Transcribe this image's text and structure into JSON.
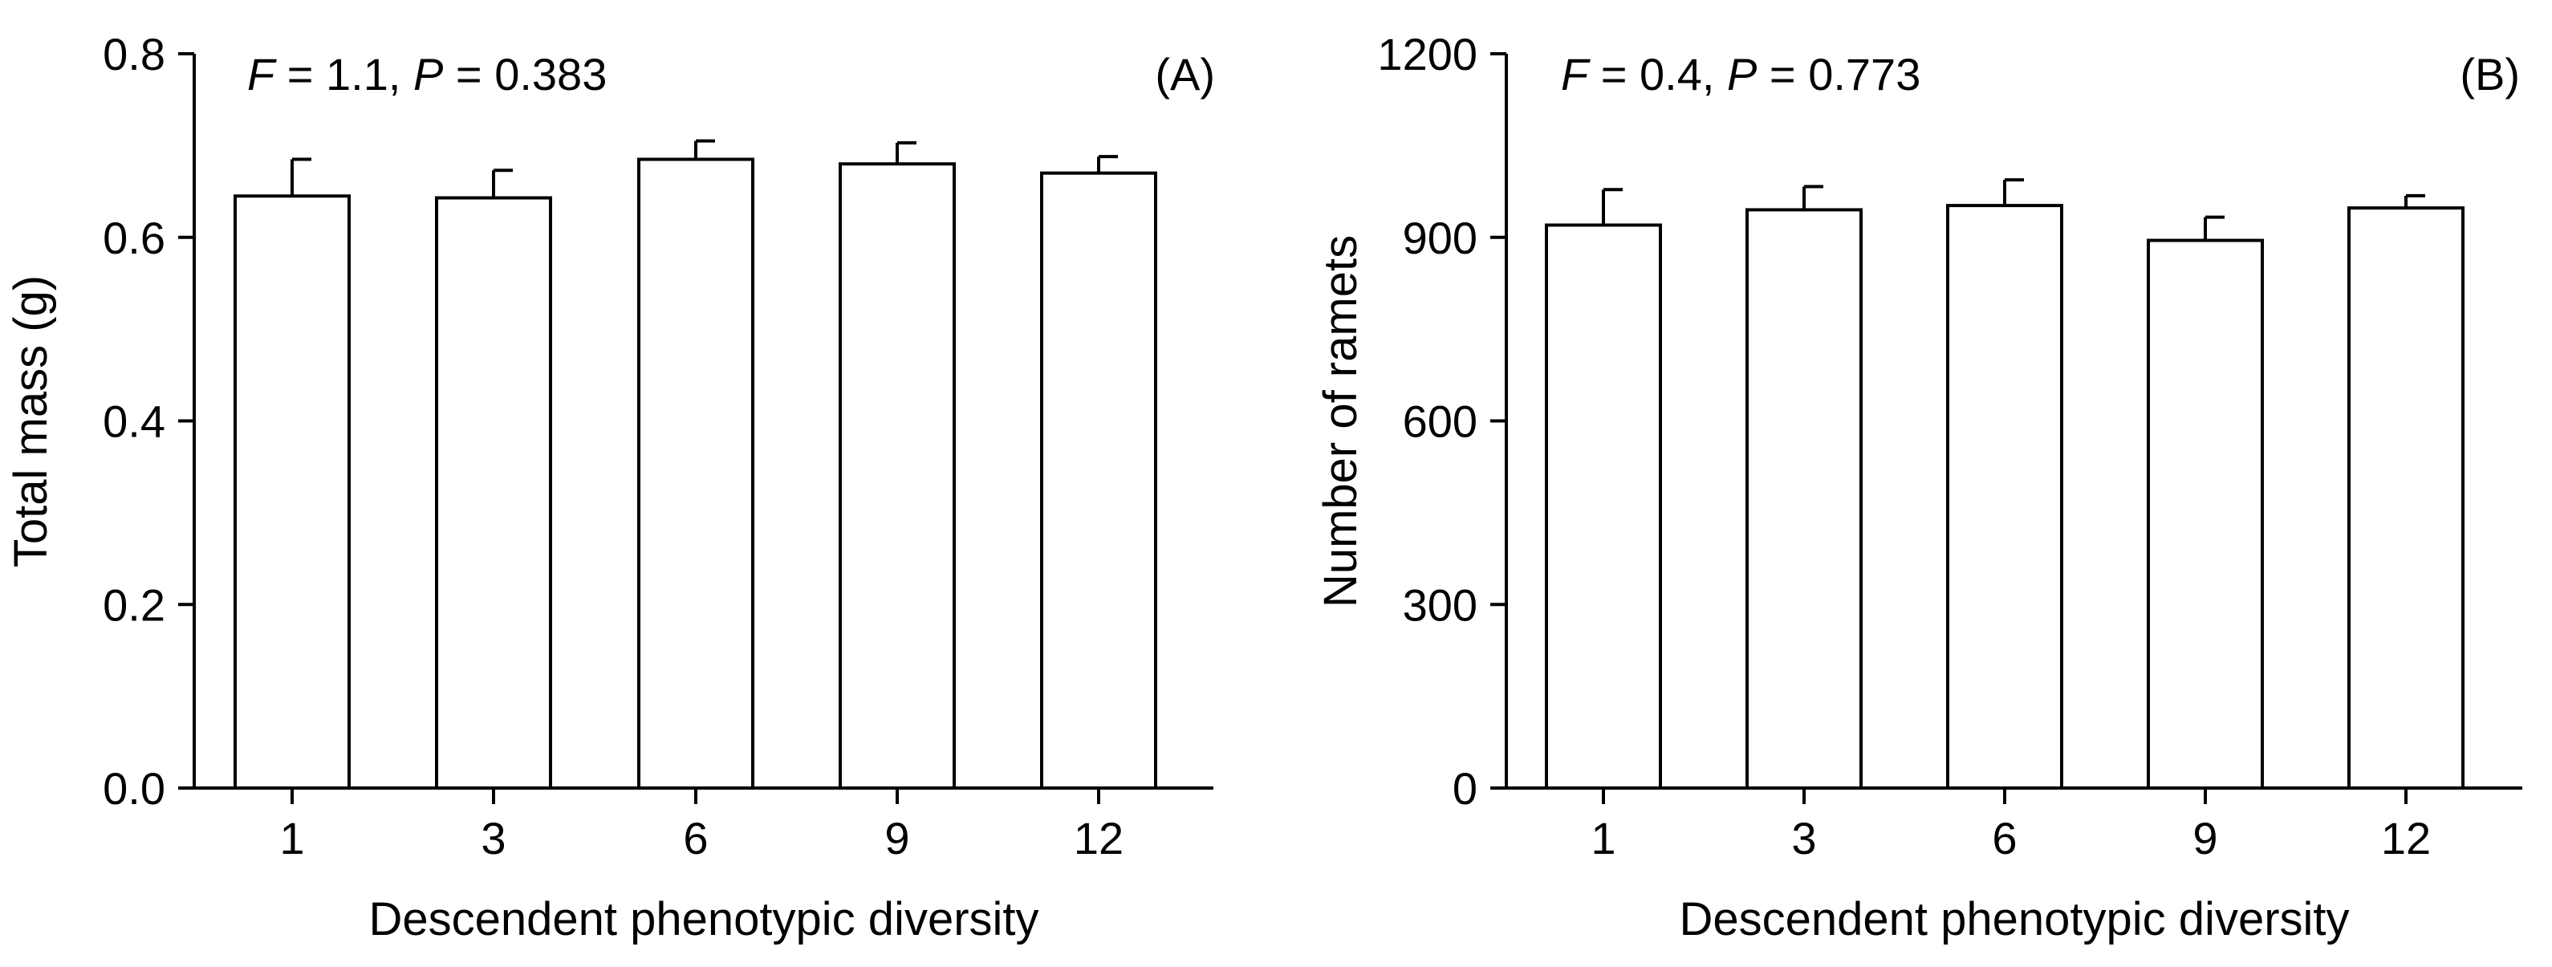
{
  "chart_data": [
    {
      "type": "bar",
      "panel_label": "(A)",
      "stat_label_f": "F",
      "stat_value_f": " = 1.1, ",
      "stat_label_p": "P",
      "stat_value_p": " = 0.383",
      "categories": [
        "1",
        "3",
        "6",
        "9",
        "12"
      ],
      "values": [
        0.645,
        0.643,
        0.685,
        0.68,
        0.67
      ],
      "errors": [
        0.04,
        0.03,
        0.02,
        0.023,
        0.018
      ],
      "xlabel": "Descendent phenotypic diversity",
      "ylabel": "Total mass (g)",
      "ylim": [
        0,
        0.8
      ],
      "yticks": [
        0,
        0.2,
        0.4,
        0.6,
        0.8
      ],
      "ytick_labels": [
        "0.0",
        "0.2",
        "0.4",
        "0.6",
        "0.8"
      ],
      "bar_color": "#ffffff",
      "stroke_color": "#000000",
      "grid": false
    },
    {
      "type": "bar",
      "panel_label": "(B)",
      "stat_label_f": "F",
      "stat_value_f": " = 0.4, ",
      "stat_label_p": "P",
      "stat_value_p": " = 0.773",
      "categories": [
        "1",
        "3",
        "6",
        "9",
        "12"
      ],
      "values": [
        920,
        945,
        952,
        895,
        948
      ],
      "errors": [
        58,
        38,
        42,
        38,
        20
      ],
      "xlabel": "Descendent phenotypic diversity",
      "ylabel": "Number of ramets",
      "ylim": [
        0,
        1200
      ],
      "yticks": [
        0,
        300,
        600,
        900,
        1200
      ],
      "ytick_labels": [
        "0",
        "300",
        "600",
        "900",
        "1200"
      ],
      "bar_color": "#ffffff",
      "stroke_color": "#000000",
      "grid": false
    }
  ]
}
